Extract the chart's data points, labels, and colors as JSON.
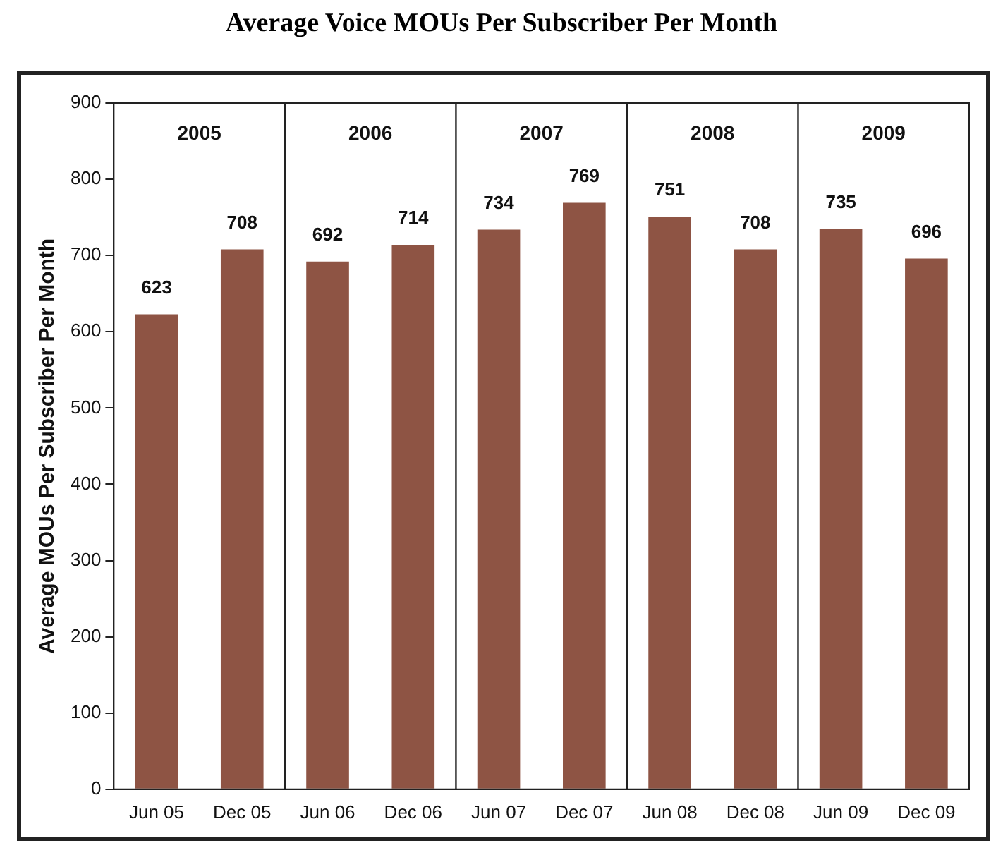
{
  "chart_data": {
    "type": "bar",
    "title": "Average Voice MOUs Per Subscriber Per Month",
    "ylabel": "Average MOUs Per Subscriber Per Month",
    "categories": [
      "Jun 05",
      "Dec 05",
      "Jun 06",
      "Dec 06",
      "Jun 07",
      "Dec 07",
      "Jun 08",
      "Dec 08",
      "Jun 09",
      "Dec 09"
    ],
    "values": [
      623,
      708,
      692,
      714,
      734,
      769,
      751,
      708,
      735,
      696
    ],
    "color": "#8e5444",
    "ylim": [
      0,
      900
    ],
    "yticks": [
      0,
      100,
      200,
      300,
      400,
      500,
      600,
      700,
      800,
      900
    ],
    "grid": false,
    "legend": false,
    "data_labels": true,
    "annotations": [
      "2005",
      "2006",
      "2007",
      "2008",
      "2009"
    ]
  }
}
